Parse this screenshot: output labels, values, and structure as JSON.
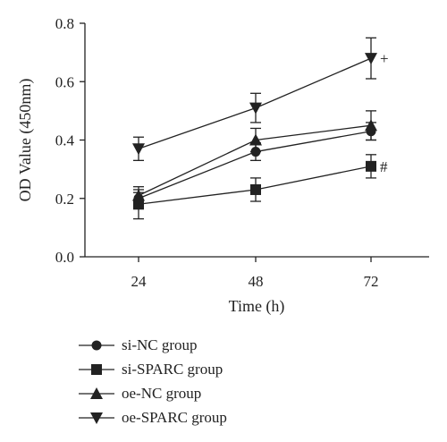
{
  "chart_data": {
    "type": "line",
    "title": "",
    "xlabel": "Time (h)",
    "ylabel": "OD Value (450nm)",
    "categories": [
      "24",
      "48",
      "72"
    ],
    "x": [
      24,
      48,
      72
    ],
    "ylim": [
      0,
      0.8
    ],
    "yticks": [
      "0.0",
      "0.2",
      "0.4",
      "0.6",
      "0.8"
    ],
    "grid": false,
    "legend_position": "bottom",
    "series": [
      {
        "name": "si-NC group",
        "marker": "circle",
        "values": [
          0.2,
          0.36,
          0.43
        ],
        "errors": [
          0.02,
          0.03,
          0.03
        ]
      },
      {
        "name": "si-SPARC group",
        "marker": "square",
        "values": [
          0.18,
          0.23,
          0.31
        ],
        "errors": [
          0.05,
          0.04,
          0.04
        ],
        "annotation": "#"
      },
      {
        "name": "oe-NC group",
        "marker": "triangle-up",
        "values": [
          0.21,
          0.4,
          0.45
        ],
        "errors": [
          0.03,
          0.04,
          0.05
        ]
      },
      {
        "name": "oe-SPARC group",
        "marker": "triangle-down",
        "values": [
          0.37,
          0.51,
          0.68
        ],
        "errors": [
          0.04,
          0.05,
          0.07
        ],
        "annotation": "+"
      }
    ]
  }
}
